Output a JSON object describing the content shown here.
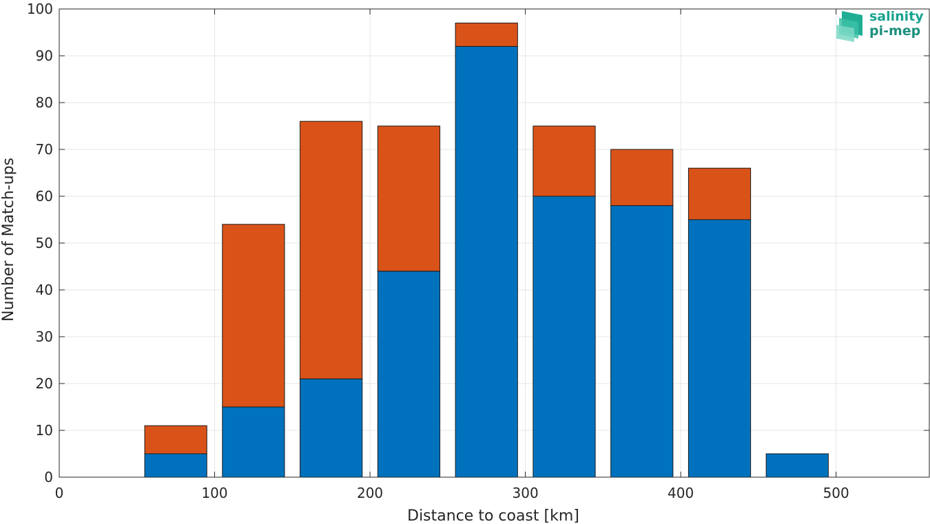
{
  "chart_data": {
    "type": "bar",
    "stacked": true,
    "xlabel": "Distance to coast [km]",
    "ylabel": "Number of Match-ups",
    "xlim": [
      0,
      560
    ],
    "ylim": [
      0,
      100
    ],
    "x_ticks": [
      0,
      100,
      200,
      300,
      400,
      500
    ],
    "y_ticks": [
      0,
      10,
      20,
      30,
      40,
      50,
      60,
      70,
      80,
      90,
      100
    ],
    "grid": true,
    "bin_width": 50,
    "x": [
      25,
      75,
      125,
      175,
      225,
      275,
      325,
      375,
      425,
      475,
      525
    ],
    "series": [
      {
        "color": "#0072bd",
        "values": [
          0,
          5,
          15,
          21,
          44,
          92,
          60,
          58,
          55,
          5,
          0
        ]
      },
      {
        "color": "#d95319",
        "values": [
          0,
          6,
          39,
          55,
          31,
          5,
          15,
          12,
          11,
          0,
          0
        ]
      }
    ]
  },
  "logo": {
    "line1": "salinity",
    "line2": "pi-mep"
  }
}
